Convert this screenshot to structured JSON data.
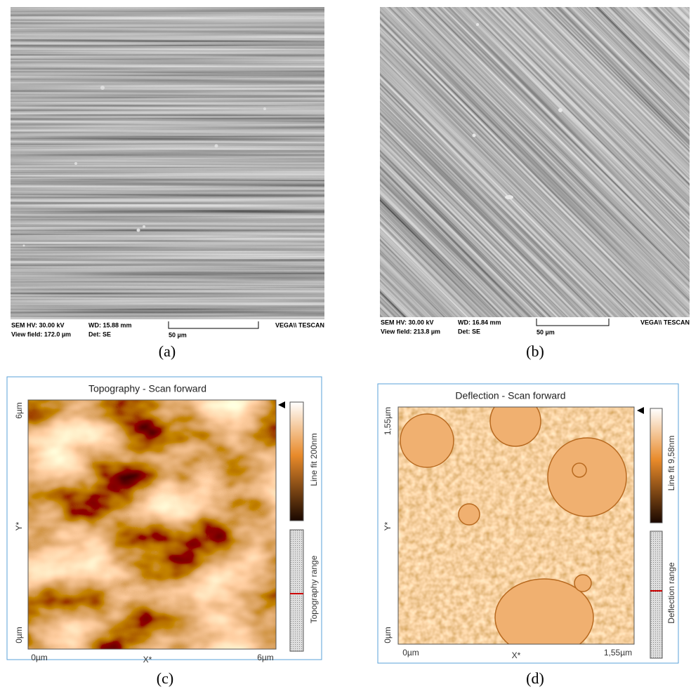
{
  "panels": [
    {
      "caption": "(a)",
      "info": {
        "hv": "SEM HV: 30.00 kV",
        "wd": "WD: 15.88 mm",
        "field": "View field: 172.0 µm",
        "det": "Det: SE",
        "scale": "50 µm",
        "brand": "VEGA\\\\ TESCAN"
      }
    },
    {
      "caption": "(b)",
      "info": {
        "hv": "SEM HV: 30.00 kV",
        "wd": "WD: 16.84 mm",
        "field": "View field: 213.8 µm",
        "det": "Det: SE",
        "scale": "50 µm",
        "brand": "VEGA\\\\ TESCAN"
      }
    },
    {
      "caption": "(c)",
      "title": "Topography - Scan forward",
      "y_axis": {
        "top": "6µm",
        "label": "Y*",
        "bottom": "0µm"
      },
      "x_axis": {
        "left": "0µm",
        "label": "X*",
        "right": "6µm"
      },
      "colorbar_label": "Line fit 200nm",
      "range_label": "Topography range"
    },
    {
      "caption": "(d)",
      "title": "Deflection - Scan forward",
      "y_axis": {
        "top": "1,55µm",
        "label": "Y*",
        "bottom": "0µm"
      },
      "x_axis": {
        "left": "0µm",
        "label": "X*",
        "right": "1,55µm"
      },
      "colorbar_label": "Line fit 9,58nm",
      "range_label": "Deflection range"
    }
  ]
}
